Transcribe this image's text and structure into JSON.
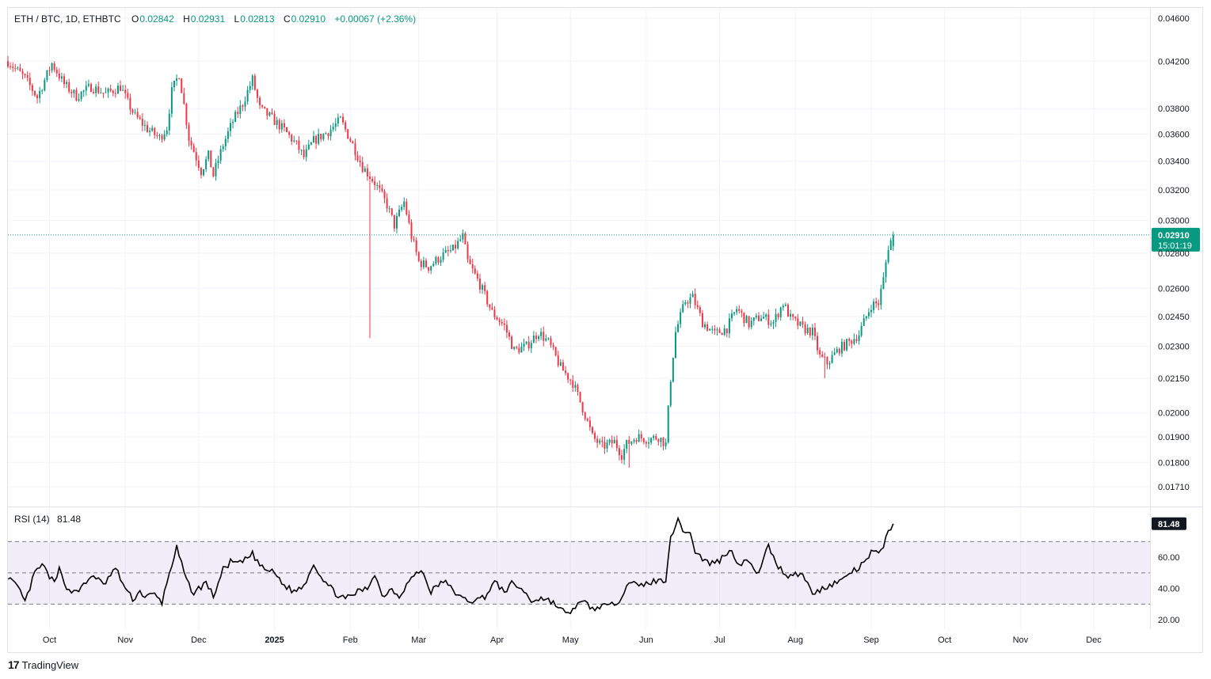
{
  "header": {
    "symbol": "ETH / BTC, 1D, ETHBTC",
    "open_label": "O",
    "open": "0.02842",
    "high_label": "H",
    "high": "0.02931",
    "low_label": "L",
    "low": "0.02813",
    "close_label": "C",
    "close": "0.02910",
    "change": "+0.00067 (+2.36%)"
  },
  "price_scale": {
    "ticks": [
      "0.04600",
      "0.04200",
      "0.03800",
      "0.03600",
      "0.03400",
      "0.03200",
      "0.03000",
      "0.02800",
      "0.02600",
      "0.02450",
      "0.02300",
      "0.02150",
      "0.02000",
      "0.01900",
      "0.01800",
      "0.01710"
    ],
    "last_price": "0.02910",
    "countdown": "15:01:19"
  },
  "rsi": {
    "title": "RSI (14)",
    "value": "81.48",
    "ticks": [
      "60.00",
      "40.00",
      "20.00"
    ]
  },
  "time_axis": {
    "labels": [
      "Oct",
      "Nov",
      "Dec",
      "2025",
      "Feb",
      "Mar",
      "Apr",
      "May",
      "Jun",
      "Jul",
      "Aug",
      "Sep",
      "Oct",
      "Nov",
      "Dec"
    ]
  },
  "branding": {
    "logo": "17",
    "name": "TradingView"
  },
  "colors": {
    "up": "#089981",
    "down": "#f23645",
    "rsi_line": "#000000",
    "rsi_band": "#7e57c2"
  },
  "chart_data": {
    "type": "candlestick",
    "title": "ETH / BTC, 1D, ETHBTC",
    "scale": "log",
    "ylim": [
      0.0164,
      0.047
    ],
    "x_start": "2024-09-08",
    "x_end": "2025-12-19",
    "price_path": [
      [
        "2024-09-08",
        0.042
      ],
      [
        "2024-09-15",
        0.0405
      ],
      [
        "2024-09-20",
        0.0389
      ],
      [
        "2024-09-26",
        0.0418
      ],
      [
        "2024-10-01",
        0.04
      ],
      [
        "2024-10-06",
        0.039
      ],
      [
        "2024-10-12",
        0.0398
      ],
      [
        "2024-10-18",
        0.0392
      ],
      [
        "2024-10-24",
        0.0398
      ],
      [
        "2024-10-27",
        0.0385
      ],
      [
        "2024-10-30",
        0.0374
      ],
      [
        "2024-11-04",
        0.0364
      ],
      [
        "2024-11-09",
        0.0357
      ],
      [
        "2024-11-12",
        0.0365
      ],
      [
        "2024-11-14",
        0.0394
      ],
      [
        "2024-11-17",
        0.0409
      ],
      [
        "2024-11-21",
        0.0357
      ],
      [
        "2024-11-26",
        0.0333
      ],
      [
        "2024-11-29",
        0.0344
      ],
      [
        "2024-12-01",
        0.033
      ],
      [
        "2024-12-05",
        0.0352
      ],
      [
        "2024-12-09",
        0.037
      ],
      [
        "2024-12-13",
        0.0384
      ],
      [
        "2024-12-17",
        0.0404
      ],
      [
        "2024-12-20",
        0.038
      ],
      [
        "2024-12-25",
        0.0372
      ],
      [
        "2024-12-30",
        0.0363
      ],
      [
        "2025-01-04",
        0.0352
      ],
      [
        "2025-01-07",
        0.0343
      ],
      [
        "2025-01-11",
        0.0355
      ],
      [
        "2025-01-17",
        0.0362
      ],
      [
        "2025-01-22",
        0.0371
      ],
      [
        "2025-01-27",
        0.0352
      ],
      [
        "2025-01-31",
        0.0336
      ],
      [
        "2025-02-05",
        0.0325
      ],
      [
        "2025-02-10",
        0.031
      ],
      [
        "2025-02-13",
        0.0297
      ],
      [
        "2025-02-17",
        0.0312
      ],
      [
        "2025-02-20",
        0.029
      ],
      [
        "2025-02-23",
        0.0275
      ],
      [
        "2025-02-27",
        0.0272
      ],
      [
        "2025-03-04",
        0.0278
      ],
      [
        "2025-03-09",
        0.0282
      ],
      [
        "2025-03-13",
        0.029
      ],
      [
        "2025-03-15",
        0.0275
      ],
      [
        "2025-03-20",
        0.0262
      ],
      [
        "2025-03-25",
        0.0247
      ],
      [
        "2025-03-30",
        0.024
      ],
      [
        "2025-04-03",
        0.0228
      ],
      [
        "2025-04-08",
        0.023
      ],
      [
        "2025-04-13",
        0.0237
      ],
      [
        "2025-04-17",
        0.0232
      ],
      [
        "2025-04-22",
        0.022
      ],
      [
        "2025-04-27",
        0.0213
      ],
      [
        "2025-05-02",
        0.0199
      ],
      [
        "2025-05-05",
        0.019
      ],
      [
        "2025-05-09",
        0.0186
      ],
      [
        "2025-05-14",
        0.0188
      ],
      [
        "2025-05-17",
        0.0183
      ],
      [
        "2025-05-19",
        0.0187
      ],
      [
        "2025-05-23",
        0.019
      ],
      [
        "2025-05-28",
        0.0189
      ],
      [
        "2025-06-01",
        0.019
      ],
      [
        "2025-06-04",
        0.0187
      ],
      [
        "2025-06-06",
        0.0215
      ],
      [
        "2025-06-08",
        0.0237
      ],
      [
        "2025-06-10",
        0.0245
      ],
      [
        "2025-06-12",
        0.0253
      ],
      [
        "2025-06-15",
        0.0255
      ],
      [
        "2025-06-19",
        0.0242
      ],
      [
        "2025-06-24",
        0.0236
      ],
      [
        "2025-06-29",
        0.0239
      ],
      [
        "2025-07-03",
        0.0249
      ],
      [
        "2025-07-08",
        0.0241
      ],
      [
        "2025-07-13",
        0.0245
      ],
      [
        "2025-07-18",
        0.0242
      ],
      [
        "2025-07-22",
        0.0252
      ],
      [
        "2025-07-25",
        0.0244
      ],
      [
        "2025-07-30",
        0.0239
      ],
      [
        "2025-08-03",
        0.0237
      ],
      [
        "2025-08-06",
        0.0225
      ],
      [
        "2025-08-09",
        0.0222
      ],
      [
        "2025-08-14",
        0.0229
      ],
      [
        "2025-08-18",
        0.0232
      ],
      [
        "2025-08-22",
        0.0236
      ],
      [
        "2025-08-25",
        0.0245
      ],
      [
        "2025-08-27",
        0.0251
      ],
      [
        "2025-08-30",
        0.0252
      ],
      [
        "2025-09-01",
        0.0265
      ],
      [
        "2025-09-03",
        0.0284
      ],
      [
        "2025-09-05",
        0.0291
      ]
    ],
    "rsi": {
      "name": "RSI (14)",
      "ylim": [
        14,
        92
      ],
      "bands": [
        70,
        50,
        30
      ],
      "path": [
        [
          "2024-09-08",
          48
        ],
        [
          "2024-09-13",
          38
        ],
        [
          "2024-09-15",
          31
        ],
        [
          "2024-09-19",
          50
        ],
        [
          "2024-09-22",
          55
        ],
        [
          "2024-09-27",
          43
        ],
        [
          "2024-09-29",
          52
        ],
        [
          "2024-10-03",
          38
        ],
        [
          "2024-10-08",
          40
        ],
        [
          "2024-10-13",
          49
        ],
        [
          "2024-10-17",
          42
        ],
        [
          "2024-10-22",
          53
        ],
        [
          "2024-10-26",
          40
        ],
        [
          "2024-10-29",
          33
        ],
        [
          "2024-11-01",
          38
        ],
        [
          "2024-11-03",
          35
        ],
        [
          "2024-11-07",
          36
        ],
        [
          "2024-11-10",
          31
        ],
        [
          "2024-11-13",
          50
        ],
        [
          "2024-11-16",
          66
        ],
        [
          "2024-11-20",
          45
        ],
        [
          "2024-11-23",
          37
        ],
        [
          "2024-11-28",
          44
        ],
        [
          "2024-12-01",
          35
        ],
        [
          "2024-12-05",
          52
        ],
        [
          "2024-12-08",
          57
        ],
        [
          "2024-12-12",
          56
        ],
        [
          "2024-12-17",
          62
        ],
        [
          "2024-12-21",
          53
        ],
        [
          "2024-12-26",
          50
        ],
        [
          "2024-12-30",
          42
        ],
        [
          "2025-01-03",
          38
        ],
        [
          "2025-01-07",
          42
        ],
        [
          "2025-01-11",
          56
        ],
        [
          "2025-01-14",
          48
        ],
        [
          "2025-01-17",
          42
        ],
        [
          "2025-01-20",
          37
        ],
        [
          "2025-01-24",
          33
        ],
        [
          "2025-01-29",
          38
        ],
        [
          "2025-02-02",
          40
        ],
        [
          "2025-02-05",
          50
        ],
        [
          "2025-02-08",
          35
        ],
        [
          "2025-02-12",
          40
        ],
        [
          "2025-02-15",
          35
        ],
        [
          "2025-02-19",
          45
        ],
        [
          "2025-02-24",
          52
        ],
        [
          "2025-02-28",
          38
        ],
        [
          "2025-03-05",
          45
        ],
        [
          "2025-03-09",
          39
        ],
        [
          "2025-03-13",
          33
        ],
        [
          "2025-03-18",
          32
        ],
        [
          "2025-03-22",
          35
        ],
        [
          "2025-03-26",
          44
        ],
        [
          "2025-03-30",
          38
        ],
        [
          "2025-04-02",
          43
        ],
        [
          "2025-04-06",
          40
        ],
        [
          "2025-04-10",
          32
        ],
        [
          "2025-04-14",
          34
        ],
        [
          "2025-04-18",
          32
        ],
        [
          "2025-04-22",
          27
        ],
        [
          "2025-04-25",
          23
        ],
        [
          "2025-04-28",
          29
        ],
        [
          "2025-05-02",
          31
        ],
        [
          "2025-05-06",
          26
        ],
        [
          "2025-05-09",
          30
        ],
        [
          "2025-05-12",
          28
        ],
        [
          "2025-05-16",
          33
        ],
        [
          "2025-05-20",
          45
        ],
        [
          "2025-05-24",
          41
        ],
        [
          "2025-05-28",
          44
        ],
        [
          "2025-06-02",
          45
        ],
        [
          "2025-06-04",
          46
        ],
        [
          "2025-06-06",
          74
        ],
        [
          "2025-06-09",
          83
        ],
        [
          "2025-06-11",
          78
        ],
        [
          "2025-06-14",
          75
        ],
        [
          "2025-06-16",
          64
        ],
        [
          "2025-06-19",
          59
        ],
        [
          "2025-06-22",
          56
        ],
        [
          "2025-06-26",
          58
        ],
        [
          "2025-06-30",
          65
        ],
        [
          "2025-07-04",
          56
        ],
        [
          "2025-07-08",
          58
        ],
        [
          "2025-07-11",
          48
        ],
        [
          "2025-07-16",
          67
        ],
        [
          "2025-07-20",
          54
        ],
        [
          "2025-07-24",
          48
        ],
        [
          "2025-07-27",
          50
        ],
        [
          "2025-07-31",
          47
        ],
        [
          "2025-08-03",
          36
        ],
        [
          "2025-08-07",
          40
        ],
        [
          "2025-08-11",
          43
        ],
        [
          "2025-08-15",
          45
        ],
        [
          "2025-08-18",
          50
        ],
        [
          "2025-08-21",
          52
        ],
        [
          "2025-08-24",
          56
        ],
        [
          "2025-08-27",
          63
        ],
        [
          "2025-08-30",
          62
        ],
        [
          "2025-09-01",
          68
        ],
        [
          "2025-09-03",
          76
        ],
        [
          "2025-09-05",
          81.48
        ]
      ]
    }
  }
}
